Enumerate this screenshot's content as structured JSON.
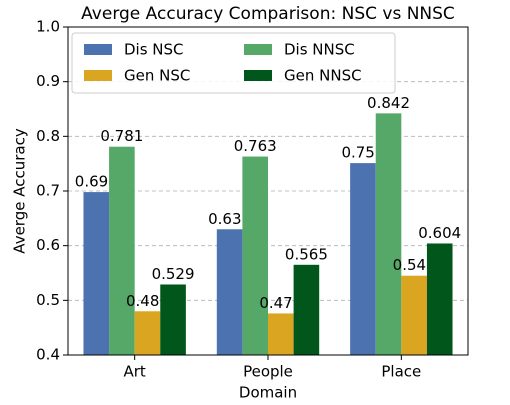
{
  "chart_data": {
    "type": "bar",
    "title": "Averge Accuracy Comparison: NSC vs NNSC",
    "x_label": "Domain",
    "y_label": "Averge Accuracy",
    "categories": [
      "Art",
      "People",
      "Place"
    ],
    "series": [
      {
        "name": "Dis NSC",
        "color": "#4c72b0",
        "values": [
          0.698,
          0.63,
          0.751
        ],
        "value_labels": [
          "0.698",
          "0.630",
          "0.751"
        ]
      },
      {
        "name": "Dis NNSC",
        "color": "#55a868",
        "values": [
          0.781,
          0.763,
          0.842
        ],
        "value_labels": [
          "0.781",
          "0.763",
          "0.842"
        ]
      },
      {
        "name": "Gen NSC",
        "color": "#daa520",
        "values": [
          0.48,
          0.476,
          0.545
        ],
        "value_labels": [
          "0.480",
          "0.476",
          "0.545"
        ]
      },
      {
        "name": "Gen NNSC",
        "color": "#00561b",
        "values": [
          0.529,
          0.565,
          0.604
        ],
        "value_labels": [
          "0.529",
          "0.565",
          "0.604"
        ]
      }
    ],
    "ylim": [
      0.4,
      1.0
    ],
    "yticks": [
      0.4,
      0.5,
      0.6,
      0.7,
      0.8,
      0.9,
      {
        "value": 1.0,
        "label": "1.0"
      }
    ],
    "grid": true,
    "legend": "upper left"
  }
}
